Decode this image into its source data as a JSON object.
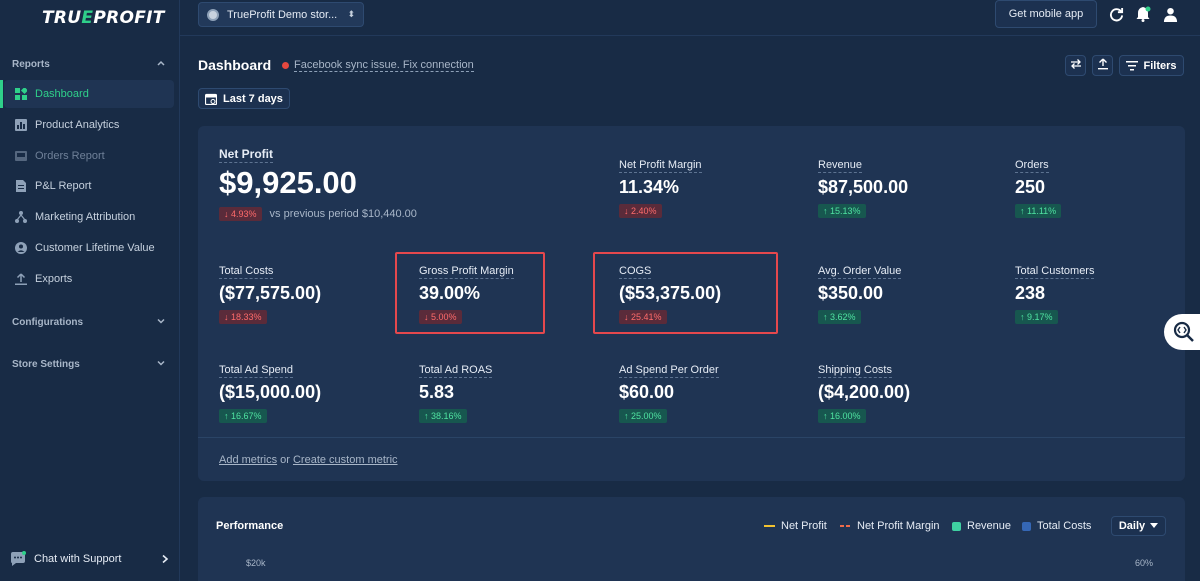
{
  "app": {
    "logo_prefix": "TRU",
    "logo_accent": "E",
    "logo_suffix": "PROFIT",
    "accent_color": "#2fd08a"
  },
  "sidebar": {
    "reports_section": "Reports",
    "items": [
      {
        "label": "Dashboard",
        "icon": "dashboard-icon",
        "active": true
      },
      {
        "label": "Product Analytics",
        "icon": "bar-chart-icon"
      },
      {
        "label": "Orders Report",
        "icon": "inbox-icon",
        "disabled": true
      },
      {
        "label": "P&L Report",
        "icon": "document-icon"
      },
      {
        "label": "Marketing Attribution",
        "icon": "network-icon"
      },
      {
        "label": "Customer Lifetime Value",
        "icon": "user-circle-icon"
      },
      {
        "label": "Exports",
        "icon": "upload-icon"
      }
    ],
    "configurations_section": "Configurations",
    "store_settings_section": "Store Settings",
    "chat_support": "Chat with Support"
  },
  "topbar": {
    "store_name": "TrueProfit Demo stor...",
    "mobile_app_label": "Get mobile app"
  },
  "header": {
    "title": "Dashboard",
    "sync_issue": "Facebook sync issue. Fix connection",
    "filters_label": "Filters",
    "date_range": "Last 7 days"
  },
  "metrics": {
    "net_profit": {
      "label": "Net Profit",
      "value": "$9,925.00",
      "change": "↓ 4.93%",
      "trend": "down",
      "previous": "vs previous period $10,440.00"
    },
    "net_profit_margin": {
      "label": "Net Profit Margin",
      "value": "11.34%",
      "change": "↓ 2.40%",
      "trend": "down"
    },
    "revenue": {
      "label": "Revenue",
      "value": "$87,500.00",
      "change": "↑ 15.13%",
      "trend": "up"
    },
    "orders": {
      "label": "Orders",
      "value": "250",
      "change": "↑ 11.11%",
      "trend": "up"
    },
    "total_costs": {
      "label": "Total Costs",
      "value": "($77,575.00)",
      "change": "↓ 18.33%",
      "trend": "down"
    },
    "gross_profit_margin": {
      "label": "Gross Profit Margin",
      "value": "39.00%",
      "change": "↓ 5.00%",
      "trend": "down"
    },
    "cogs": {
      "label": "COGS",
      "value": "($53,375.00)",
      "change": "↓ 25.41%",
      "trend": "down"
    },
    "avg_order_value": {
      "label": "Avg. Order Value",
      "value": "$350.00",
      "change": "↑ 3.62%",
      "trend": "up"
    },
    "total_customers": {
      "label": "Total Customers",
      "value": "238",
      "change": "↑ 9.17%",
      "trend": "up"
    },
    "total_ad_spend": {
      "label": "Total Ad Spend",
      "value": "($15,000.00)",
      "change": "↑ 16.67%",
      "trend": "up"
    },
    "total_ad_roas": {
      "label": "Total Ad ROAS",
      "value": "5.83",
      "change": "↑ 38.16%",
      "trend": "up"
    },
    "ad_spend_per_order": {
      "label": "Ad Spend Per Order",
      "value": "$60.00",
      "change": "↑ 25.00%",
      "trend": "up"
    },
    "shipping_costs": {
      "label": "Shipping Costs",
      "value": "($4,200.00)",
      "change": "↑ 16.00%",
      "trend": "up"
    }
  },
  "footer": {
    "add_metrics": "Add metrics",
    "or_text": " or ",
    "create_custom": "Create custom metric"
  },
  "performance": {
    "title": "Performance",
    "legend": [
      {
        "label": "Net Profit",
        "color": "#f2c230"
      },
      {
        "label": "Net Profit Margin",
        "color": "#ee6a4a"
      },
      {
        "label": "Revenue",
        "color": "#3fd0a2"
      },
      {
        "label": "Total Costs",
        "color": "#3567b5"
      }
    ],
    "granularity": "Daily",
    "left_axis_top": "$20k",
    "right_axis_top": "60%"
  },
  "colors": {
    "background": "#182b45",
    "panel": "#1f3453",
    "up": "#4fe3a1",
    "down": "#ff6b6b",
    "highlight": "#e5484d"
  }
}
